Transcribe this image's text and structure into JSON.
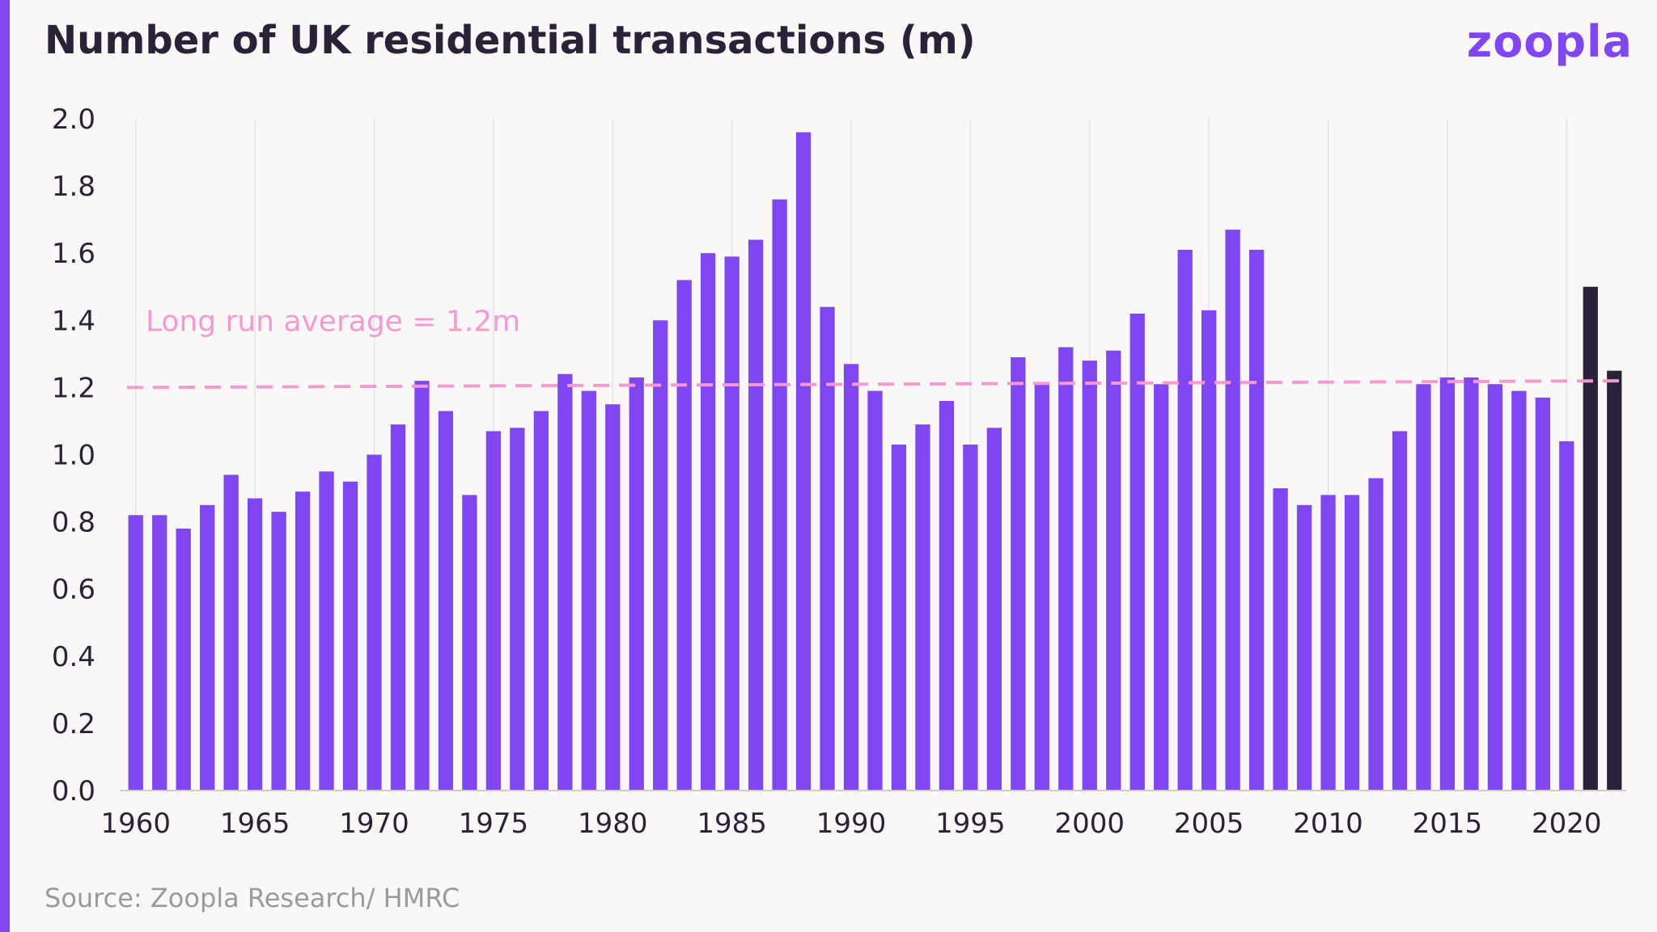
{
  "title": "Number of UK residential transactions (m)",
  "brand": "zoopla",
  "source": "Source: Zoopla Research/ HMRC",
  "colors": {
    "accent": "#8046f1",
    "highlight": "#2a2238",
    "average_line": "#f49ad3",
    "text": "#2a2238"
  },
  "chart_data": {
    "type": "bar",
    "title": "Number of UK residential transactions (m)",
    "xlabel": "",
    "ylabel": "",
    "ylim": [
      0,
      2.0
    ],
    "yticks": [
      "0.0",
      "0.2",
      "0.4",
      "0.6",
      "0.8",
      "1.0",
      "1.2",
      "1.4",
      "1.6",
      "1.8",
      "2.0"
    ],
    "xticks": [
      "1960",
      "1965",
      "1970",
      "1975",
      "1980",
      "1985",
      "1990",
      "1995",
      "2000",
      "2005",
      "2010",
      "2015",
      "2020"
    ],
    "grid": "vertical",
    "categories": [
      1960,
      1961,
      1962,
      1963,
      1964,
      1965,
      1966,
      1967,
      1968,
      1969,
      1970,
      1971,
      1972,
      1973,
      1974,
      1975,
      1976,
      1977,
      1978,
      1979,
      1980,
      1981,
      1982,
      1983,
      1984,
      1985,
      1986,
      1987,
      1988,
      1989,
      1990,
      1991,
      1992,
      1993,
      1994,
      1995,
      1996,
      1997,
      1998,
      1999,
      2000,
      2001,
      2002,
      2003,
      2004,
      2005,
      2006,
      2007,
      2008,
      2009,
      2010,
      2011,
      2012,
      2013,
      2014,
      2015,
      2016,
      2017,
      2018,
      2019,
      2020,
      2021,
      2022
    ],
    "values": [
      0.82,
      0.82,
      0.78,
      0.85,
      0.94,
      0.87,
      0.83,
      0.89,
      0.95,
      0.92,
      1.0,
      1.09,
      1.22,
      1.13,
      0.88,
      1.07,
      1.08,
      1.13,
      1.24,
      1.19,
      1.15,
      1.23,
      1.4,
      1.52,
      1.6,
      1.59,
      1.64,
      1.76,
      1.96,
      1.44,
      1.27,
      1.19,
      1.03,
      1.09,
      1.16,
      1.03,
      1.08,
      1.29,
      1.21,
      1.32,
      1.28,
      1.31,
      1.42,
      1.21,
      1.61,
      1.43,
      1.67,
      1.61,
      0.9,
      0.85,
      0.88,
      0.88,
      0.93,
      1.07,
      1.21,
      1.23,
      1.23,
      1.21,
      1.19,
      1.17,
      1.04,
      1.5,
      1.25
    ],
    "highlighted": [
      2021,
      2022
    ],
    "annotations": [
      {
        "text": "Long run average = 1.2m",
        "type": "dashed-line",
        "y_start": 1.2,
        "y_end": 1.22
      }
    ]
  }
}
